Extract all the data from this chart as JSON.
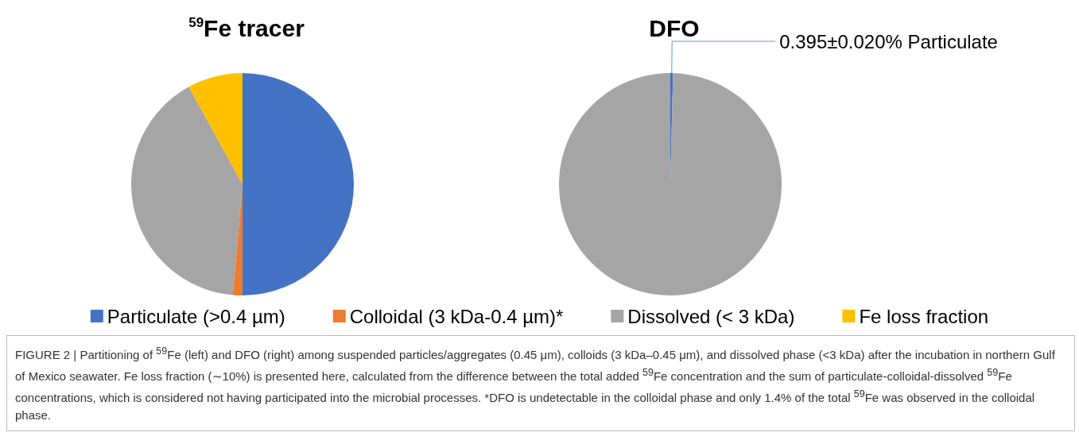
{
  "chart_data": {
    "type": "pie",
    "categories": [
      "Particulate (>0.4 µm)",
      "Colloidal (3 kDa-0.4 µm)*",
      "Dissolved (< 3 kDa)",
      "Fe loss fraction"
    ],
    "colors": [
      "#4472c4",
      "#ed7d31",
      "#a5a5a5",
      "#ffc000"
    ],
    "legend": "bottom",
    "series": [
      {
        "name": "$^{59}$Fe tracer",
        "values": [
          50,
          1.4,
          40.6,
          8
        ]
      },
      {
        "name": "DFO",
        "values": [
          0.395,
          0,
          99.605,
          null
        ],
        "value_labels": [
          "0.395±0.020% Particulate",
          null,
          null,
          null
        ]
      }
    ],
    "annotations": [
      "FIGURE 2 | Partitioning of $^{59}$Fe (left) and DFO (right) among suspended particles/aggregates (0.45 μm), colloids (3 kDa–0.45 μm), and dissolved phase (<3 kDa) after the incubation in northern Gulf of Mexico seawater. Fe loss fraction (∼10%) is presented here, calculated from the difference between the total added $^{59}$Fe concentration and the sum of particulate-colloidal-dissolved $^{59}$Fe concentrations, which is considered not having participated into the microbial processes. *DFO is undetectable in the colloidal phase and only 1.4% of the total $^{59}$Fe was observed in the colloidal phase."
    ]
  }
}
